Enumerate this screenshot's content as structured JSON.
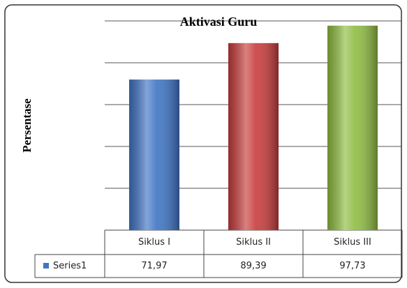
{
  "chart_data": {
    "type": "bar",
    "title": "Aktivasi Guru",
    "y_label": "Persentase",
    "categories": [
      "Siklus I",
      "Siklus II",
      "Siklus III"
    ],
    "series": [
      {
        "name": "Series1",
        "color": "#3f74c4",
        "colors": [
          "#3f74c4",
          "#c83c3c",
          "#8fbc42"
        ],
        "values": [
          71.97,
          89.39,
          97.73
        ],
        "value_labels": [
          "71,97",
          "89,39",
          "97,73"
        ]
      }
    ],
    "ylim": [
      0,
      100
    ],
    "yticks": [
      0,
      20,
      40,
      60,
      80,
      100
    ],
    "grid": true,
    "legend": "data-table"
  }
}
